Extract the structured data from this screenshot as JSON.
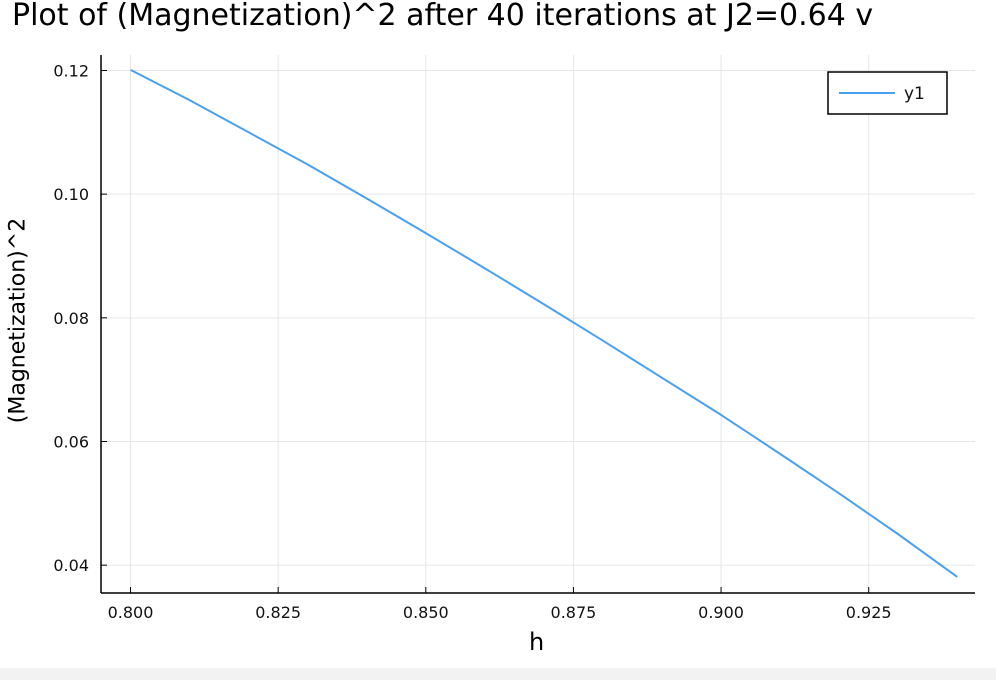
{
  "chart_data": {
    "type": "line",
    "title": "Plot of (Magnetization)^2 after 40 iterations at J2=0.64 v",
    "xlabel": "h",
    "ylabel": "(Magnetization)^2",
    "xlim": [
      0.795,
      0.943
    ],
    "ylim": [
      0.0355,
      0.1225
    ],
    "x_ticks": [
      "0.800",
      "0.825",
      "0.850",
      "0.875",
      "0.900",
      "0.925"
    ],
    "y_ticks": [
      "0.04",
      "0.06",
      "0.08",
      "0.10",
      "0.12"
    ],
    "grid": true,
    "legend": {
      "placement": "top-right",
      "entries": [
        "y1"
      ]
    },
    "colors": {
      "y1": "#4aa0f0"
    },
    "series": [
      {
        "name": "y1",
        "x": [
          0.8,
          0.81,
          0.82,
          0.83,
          0.84,
          0.85,
          0.86,
          0.87,
          0.88,
          0.89,
          0.9,
          0.91,
          0.92,
          0.93,
          0.94
        ],
        "values": [
          0.1201,
          0.1152,
          0.11,
          0.1048,
          0.0993,
          0.0937,
          0.088,
          0.0822,
          0.0763,
          0.0703,
          0.0643,
          0.058,
          0.0516,
          0.045,
          0.0381
        ]
      }
    ]
  }
}
